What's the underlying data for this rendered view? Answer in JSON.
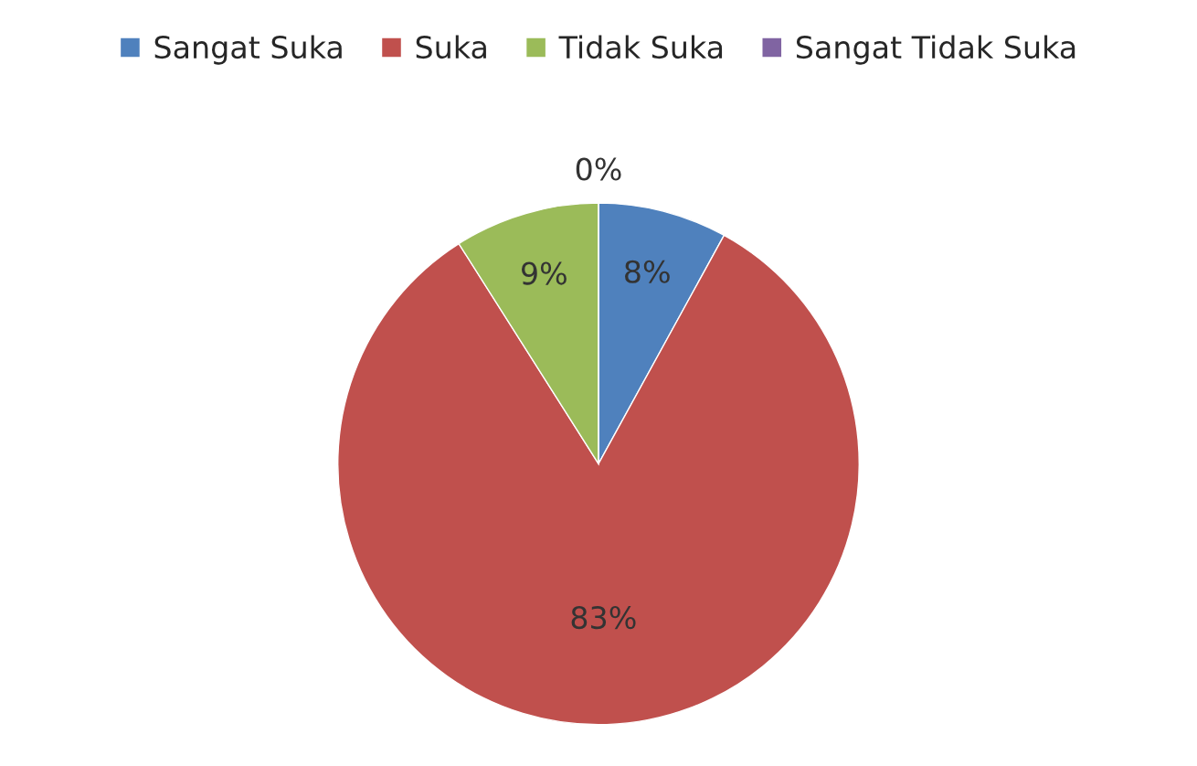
{
  "chart_data": {
    "type": "pie",
    "categories": [
      "Sangat Suka",
      "Suka",
      "Tidak Suka",
      "Sangat Tidak Suka"
    ],
    "values": [
      8,
      83,
      9,
      0
    ],
    "colors": [
      "#4f81bd",
      "#c0504d",
      "#9bbb59",
      "#8064a2"
    ],
    "value_labels": [
      "8%",
      "83%",
      "9%",
      "0%"
    ],
    "legend": "top"
  }
}
